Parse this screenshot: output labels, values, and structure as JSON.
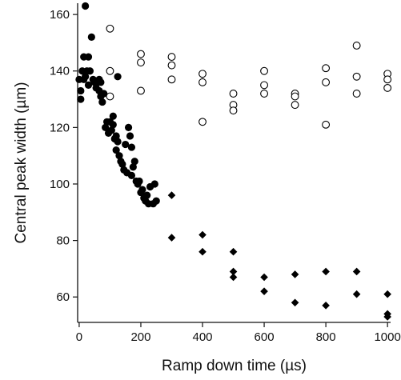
{
  "chart_data": {
    "type": "scatter",
    "title": "",
    "xlabel": "Ramp down time (µs)",
    "ylabel": "Central peak width (µm)",
    "xlim": [
      -5,
      1010
    ],
    "ylim": [
      51,
      164
    ],
    "xticks": [
      0,
      200,
      400,
      600,
      800,
      1000
    ],
    "yticks": [
      60,
      80,
      100,
      120,
      140,
      160
    ],
    "grid": false,
    "legend": "none",
    "series": [
      {
        "marker": "filled-circle",
        "points": [
          [
            0,
            137
          ],
          [
            5,
            130
          ],
          [
            5,
            133
          ],
          [
            10,
            140
          ],
          [
            15,
            145
          ],
          [
            15,
            137
          ],
          [
            20,
            163
          ],
          [
            20,
            138
          ],
          [
            25,
            140
          ],
          [
            30,
            145
          ],
          [
            30,
            135
          ],
          [
            35,
            140
          ],
          [
            40,
            152
          ],
          [
            45,
            137
          ],
          [
            50,
            136
          ],
          [
            55,
            134
          ],
          [
            60,
            136
          ],
          [
            65,
            133
          ],
          [
            65,
            137
          ],
          [
            70,
            136
          ],
          [
            70,
            131
          ],
          [
            75,
            129
          ],
          [
            80,
            132
          ],
          [
            85,
            120
          ],
          [
            90,
            122
          ],
          [
            95,
            118
          ],
          [
            100,
            122
          ],
          [
            105,
            119
          ],
          [
            110,
            124
          ],
          [
            110,
            121
          ],
          [
            115,
            116
          ],
          [
            120,
            117
          ],
          [
            120,
            112
          ],
          [
            125,
            115
          ],
          [
            125,
            138
          ],
          [
            130,
            110
          ],
          [
            135,
            108
          ],
          [
            140,
            107
          ],
          [
            145,
            105
          ],
          [
            150,
            114
          ],
          [
            155,
            104
          ],
          [
            160,
            120
          ],
          [
            165,
            117
          ],
          [
            170,
            113
          ],
          [
            170,
            103
          ],
          [
            175,
            106
          ],
          [
            180,
            108
          ],
          [
            185,
            101
          ],
          [
            190,
            100
          ],
          [
            195,
            101
          ],
          [
            200,
            97
          ],
          [
            205,
            98
          ],
          [
            210,
            95
          ],
          [
            215,
            94
          ],
          [
            220,
            96
          ],
          [
            225,
            93
          ],
          [
            230,
            99
          ],
          [
            240,
            93
          ],
          [
            245,
            100
          ],
          [
            250,
            94
          ]
        ]
      },
      {
        "marker": "open-circle",
        "points": [
          [
            100,
            155
          ],
          [
            100,
            140
          ],
          [
            100,
            131
          ],
          [
            200,
            146
          ],
          [
            200,
            143
          ],
          [
            200,
            133
          ],
          [
            300,
            145
          ],
          [
            300,
            142
          ],
          [
            300,
            137
          ],
          [
            400,
            139
          ],
          [
            400,
            136
          ],
          [
            400,
            122
          ],
          [
            500,
            132
          ],
          [
            500,
            128
          ],
          [
            500,
            126
          ],
          [
            600,
            140
          ],
          [
            600,
            135
          ],
          [
            600,
            132
          ],
          [
            700,
            132
          ],
          [
            700,
            131
          ],
          [
            700,
            128
          ],
          [
            800,
            141
          ],
          [
            800,
            136
          ],
          [
            800,
            121
          ],
          [
            900,
            149
          ],
          [
            900,
            138
          ],
          [
            900,
            132
          ],
          [
            1000,
            139
          ],
          [
            1000,
            137
          ],
          [
            1000,
            134
          ]
        ]
      },
      {
        "marker": "filled-diamond",
        "points": [
          [
            300,
            96
          ],
          [
            300,
            81
          ],
          [
            400,
            82
          ],
          [
            400,
            76
          ],
          [
            500,
            76
          ],
          [
            500,
            69
          ],
          [
            500,
            67
          ],
          [
            600,
            67
          ],
          [
            600,
            62
          ],
          [
            700,
            68
          ],
          [
            700,
            58
          ],
          [
            800,
            69
          ],
          [
            800,
            57
          ],
          [
            900,
            69
          ],
          [
            900,
            61
          ],
          [
            1000,
            61
          ],
          [
            1000,
            54
          ],
          [
            1000,
            53
          ]
        ]
      }
    ]
  }
}
